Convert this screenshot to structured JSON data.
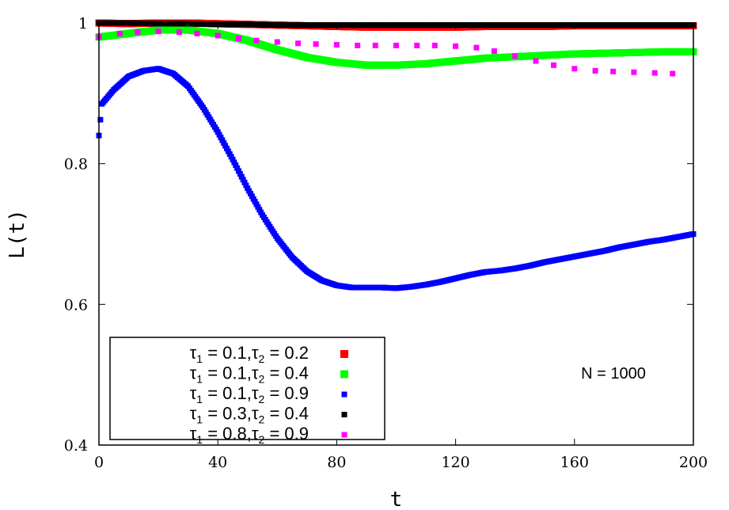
{
  "chart_data": {
    "type": "scatter",
    "xlabel": "t",
    "ylabel": "L(t)",
    "xlim": [
      0,
      200
    ],
    "ylim": [
      0.4,
      1.0
    ],
    "xticks": [
      "0",
      "40",
      "80",
      "120",
      "160",
      "200"
    ],
    "yticks": [
      "0.4",
      "0.6",
      "0.8",
      "1"
    ],
    "annotation": "N = 1000",
    "legend_position": "bottom-left",
    "grid": false,
    "series": [
      {
        "name": "τ1 = 0.1,τ2 = 0.2",
        "color": "#ff0000",
        "x": [
          0,
          10,
          20,
          30,
          40,
          50,
          60,
          70,
          80,
          90,
          100,
          110,
          120,
          130,
          140,
          150,
          160,
          170,
          180,
          190,
          200
        ],
        "y": [
          1.0,
          0.999,
          1.0,
          1.0,
          0.999,
          0.998,
          0.997,
          0.996,
          0.995,
          0.994,
          0.994,
          0.994,
          0.994,
          0.995,
          0.995,
          0.995,
          0.996,
          0.996,
          0.996,
          0.996,
          0.996
        ]
      },
      {
        "name": "τ1 = 0.1,τ2 = 0.4",
        "color": "#00ff00",
        "x": [
          0,
          10,
          20,
          30,
          40,
          50,
          60,
          70,
          80,
          90,
          100,
          110,
          120,
          130,
          140,
          150,
          160,
          170,
          180,
          190,
          200
        ],
        "y": [
          0.98,
          0.985,
          0.99,
          0.99,
          0.985,
          0.975,
          0.962,
          0.951,
          0.944,
          0.94,
          0.94,
          0.942,
          0.946,
          0.95,
          0.952,
          0.954,
          0.956,
          0.957,
          0.958,
          0.959,
          0.959
        ]
      },
      {
        "name": "τ1 = 0.1,τ2 = 0.9",
        "color": "#0000ff",
        "x": [
          0,
          1,
          2,
          3,
          5,
          10,
          15,
          20,
          25,
          30,
          35,
          40,
          45,
          50,
          55,
          60,
          65,
          70,
          75,
          80,
          85,
          90,
          95,
          100,
          105,
          110,
          115,
          120,
          125,
          130,
          135,
          140,
          145,
          150,
          155,
          160,
          165,
          170,
          175,
          180,
          185,
          190,
          195,
          200
        ],
        "y": [
          0.84,
          0.885,
          0.89,
          0.895,
          0.905,
          0.924,
          0.932,
          0.935,
          0.928,
          0.91,
          0.88,
          0.845,
          0.806,
          0.765,
          0.727,
          0.694,
          0.667,
          0.647,
          0.634,
          0.627,
          0.624,
          0.624,
          0.624,
          0.623,
          0.625,
          0.628,
          0.632,
          0.637,
          0.642,
          0.646,
          0.648,
          0.651,
          0.655,
          0.66,
          0.664,
          0.668,
          0.672,
          0.676,
          0.681,
          0.685,
          0.689,
          0.692,
          0.696,
          0.7
        ]
      },
      {
        "name": "τ1 = 0.3,τ2 = 0.4",
        "color": "#000000",
        "x": [
          0,
          10,
          20,
          30,
          40,
          50,
          60,
          70,
          80,
          90,
          100,
          110,
          120,
          130,
          140,
          150,
          160,
          170,
          180,
          190,
          200
        ],
        "y": [
          1.0,
          1.0,
          0.999,
          0.999,
          0.998,
          0.998,
          0.997,
          0.997,
          0.997,
          0.997,
          0.997,
          0.997,
          0.997,
          0.997,
          0.997,
          0.997,
          0.997,
          0.997,
          0.997,
          0.997,
          0.997
        ]
      },
      {
        "name": "τ1 = 0.8,τ2 = 0.9",
        "color": "#ff00ff",
        "x": [
          0,
          7,
          13,
          20,
          27,
          33,
          40,
          47,
          53,
          60,
          67,
          73,
          80,
          87,
          93,
          100,
          107,
          113,
          120,
          127,
          133,
          140,
          147,
          153,
          160,
          167,
          173,
          180,
          187,
          193
        ],
        "y": [
          0.98,
          0.985,
          0.987,
          0.988,
          0.987,
          0.985,
          0.982,
          0.978,
          0.975,
          0.973,
          0.971,
          0.97,
          0.969,
          0.968,
          0.968,
          0.968,
          0.968,
          0.968,
          0.967,
          0.965,
          0.96,
          0.953,
          0.946,
          0.94,
          0.935,
          0.932,
          0.931,
          0.93,
          0.929,
          0.928
        ]
      }
    ]
  }
}
